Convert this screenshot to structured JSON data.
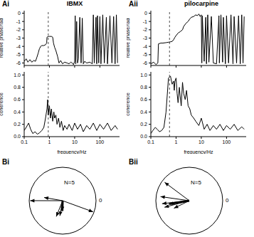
{
  "chart_data": [
    {
      "type": "line",
      "panel_label": "Ai",
      "title": "IBMX",
      "y_label": "relative phase/rad",
      "log": "x",
      "xlim": [
        0.1,
        600
      ],
      "xticks": [
        0.1,
        1,
        10,
        100
      ],
      "ylim": [
        -6.3,
        0.3
      ],
      "yticks": [
        0,
        -1,
        -2,
        -3,
        -4,
        -5,
        -6
      ],
      "tick_labels": "y",
      "reference_x": 0.9,
      "color": "#000000",
      "x": [
        0.1,
        0.12,
        0.14,
        0.17,
        0.2,
        0.24,
        0.28,
        0.32,
        0.36,
        0.4,
        0.45,
        0.5,
        0.6,
        0.7,
        0.78,
        0.8,
        0.9,
        1.0,
        1.2,
        1.35,
        1.45,
        1.6,
        1.8,
        2.1,
        2.4,
        2.8,
        3.3,
        4,
        5,
        6,
        7,
        8,
        9,
        10,
        10.5,
        11,
        12,
        13,
        14,
        16,
        18,
        20,
        22,
        25,
        30,
        40,
        50,
        55,
        60,
        70,
        75,
        80,
        90,
        100,
        110,
        130,
        150,
        180,
        200,
        250,
        300,
        350,
        400,
        450,
        500
      ],
      "values": [
        -5.8,
        -5.5,
        -5.9,
        -5.6,
        -5.9,
        -5.7,
        -5.8,
        -5.3,
        -4.8,
        -4.3,
        -4.0,
        -3.9,
        -3.9,
        -3.8,
        -3.6,
        -2.9,
        -2.8,
        -2.8,
        -2.8,
        -2.9,
        -3.6,
        -4.1,
        -4.5,
        -5.2,
        -6.0,
        -5.7,
        -6.1,
        -5.9,
        -6.0,
        -6.1,
        -5.9,
        -6.0,
        -6.2,
        -5.8,
        -0.3,
        -6.1,
        -1.0,
        -6.0,
        -5.5,
        -0.5,
        -6.0,
        -0.6,
        -6.1,
        -5.8,
        -6.0,
        -5.9,
        -6.1,
        -0.2,
        -6.0,
        -0.5,
        -6.1,
        -0.3,
        -6.0,
        -0.4,
        -6.1,
        -0.2,
        -6.0,
        -0.5,
        -6.1,
        -0.3,
        -6.0,
        -0.4,
        -6.1,
        -0.2,
        -6.0
      ]
    },
    {
      "type": "line",
      "y_label": "coherence",
      "x_label": "frequency/Hz",
      "log": "x",
      "xlim": [
        0.1,
        600
      ],
      "xticks": [
        0.1,
        1,
        10,
        100
      ],
      "ylim": [
        0,
        1.05
      ],
      "yticks": [
        {
          "value": 0,
          "label": "0.0"
        },
        0.2,
        0.4,
        0.6,
        0.8,
        {
          "value": 1,
          "label": "1.0"
        }
      ],
      "tick_labels": true,
      "reference_x": 0.9,
      "color": "#000000",
      "x": [
        0.1,
        0.12,
        0.15,
        0.18,
        0.22,
        0.27,
        0.33,
        0.4,
        0.5,
        0.6,
        0.7,
        0.8,
        0.85,
        0.9,
        1.0,
        1.1,
        1.2,
        1.35,
        1.5,
        1.6,
        1.8,
        2.0,
        2.3,
        2.6,
        3,
        3.5,
        4,
        5,
        6,
        8,
        10,
        13,
        17,
        22,
        30,
        40,
        55,
        75,
        100,
        140,
        200,
        280,
        400,
        500
      ],
      "values": [
        0.1,
        0.15,
        0.22,
        0.12,
        0.05,
        0.08,
        0.04,
        0.06,
        0.1,
        0.15,
        0.3,
        0.45,
        0.6,
        0.35,
        0.5,
        0.3,
        0.45,
        0.25,
        0.4,
        0.3,
        0.35,
        0.2,
        0.3,
        0.15,
        0.25,
        0.1,
        0.18,
        0.12,
        0.2,
        0.1,
        0.22,
        0.12,
        0.2,
        0.08,
        0.18,
        0.12,
        0.22,
        0.1,
        0.2,
        0.12,
        0.22,
        0.1,
        0.18,
        0.12
      ]
    },
    {
      "type": "line",
      "panel_label": "Aii",
      "title": "pilocarpine",
      "y_label": "relative phase/rad",
      "log": "x",
      "xlim": [
        0.1,
        600
      ],
      "xticks": [
        0.1,
        1,
        10,
        100
      ],
      "ylim": [
        -6.3,
        0.3
      ],
      "yticks": [
        0,
        -1,
        -2,
        -3,
        -4,
        -5,
        -6
      ],
      "tick_labels": "y",
      "reference_x": 0.55,
      "color": "#000000",
      "x": [
        0.1,
        0.13,
        0.16,
        0.19,
        0.2,
        0.25,
        0.3,
        0.4,
        0.5,
        0.6,
        0.7,
        0.8,
        0.9,
        1.0,
        1.2,
        1.5,
        1.8,
        2.0,
        2.5,
        3,
        3.5,
        4,
        5,
        6,
        7,
        8,
        9,
        10,
        10.5,
        11,
        13,
        15,
        16,
        18,
        20,
        25,
        30,
        40,
        50,
        52,
        60,
        70,
        75,
        90,
        100,
        120,
        150,
        180,
        200,
        250,
        300,
        350,
        400,
        450,
        500
      ],
      "values": [
        -6.1,
        -5.9,
        -6.2,
        -6.0,
        -3.7,
        -3.6,
        -3.6,
        -3.55,
        -3.5,
        -3.45,
        -3.4,
        -3.2,
        -2.9,
        -2.7,
        -2.4,
        -2.2,
        -2.0,
        -1.6,
        -1.2,
        -1.0,
        -0.7,
        -0.5,
        -0.4,
        -0.2,
        -0.3,
        -0.1,
        -0.4,
        -0.2,
        -6.0,
        -0.3,
        -5.8,
        -0.5,
        -6.1,
        -0.2,
        -5.9,
        -0.4,
        -6.0,
        -6.1,
        -0.3,
        -6.0,
        -0.2,
        -5.9,
        -0.5,
        -6.1,
        -0.3,
        -6.0,
        -0.2,
        -6.1,
        -0.4,
        -6.0,
        -0.3,
        -6.1,
        -0.2,
        -6.0,
        -0.4
      ]
    },
    {
      "type": "line",
      "y_label": "coherence",
      "x_label": "frequency/Hz",
      "log": "x",
      "xlim": [
        0.1,
        600
      ],
      "xticks": [
        0.1,
        1,
        10,
        100
      ],
      "ylim": [
        0,
        1.05
      ],
      "yticks": [
        {
          "value": 0,
          "label": "0.0"
        },
        0.2,
        0.4,
        0.6,
        0.8,
        {
          "value": 1,
          "label": "1.0"
        }
      ],
      "tick_labels": true,
      "reference_x": 0.55,
      "color": "#000000",
      "x": [
        0.1,
        0.12,
        0.15,
        0.18,
        0.22,
        0.27,
        0.33,
        0.4,
        0.5,
        0.6,
        0.7,
        0.8,
        0.85,
        0.9,
        1.0,
        1.1,
        1.2,
        1.35,
        1.5,
        1.6,
        1.8,
        2.0,
        2.3,
        2.6,
        3,
        3.5,
        4,
        5,
        6,
        8,
        10,
        13,
        17,
        22,
        30,
        40,
        55,
        75,
        100,
        140,
        200,
        280,
        400,
        500
      ],
      "values": [
        0.05,
        0.1,
        0.15,
        0.12,
        0.08,
        0.1,
        0.15,
        0.4,
        0.95,
        0.98,
        0.85,
        0.9,
        0.75,
        0.9,
        0.95,
        0.7,
        0.55,
        0.8,
        0.6,
        0.5,
        0.88,
        0.7,
        0.6,
        0.75,
        0.5,
        0.45,
        0.35,
        0.3,
        0.25,
        0.18,
        0.3,
        0.12,
        0.2,
        0.1,
        0.18,
        0.12,
        0.2,
        0.1,
        0.18,
        0.12,
        0.2,
        0.1,
        0.16,
        0.12
      ]
    },
    {
      "type": "polar",
      "panel_label": "Bi",
      "annotation": "N=5",
      "angle_ticks": [
        {
          "value": 0,
          "label": "0"
        }
      ],
      "color": "#000000",
      "vectors": [
        {
          "angle": 3.14,
          "length": 0.95
        },
        {
          "angle": 2.97,
          "length": 0.55
        },
        {
          "angle": -1.95,
          "length": 0.5
        },
        {
          "angle": -1.75,
          "length": 0.45
        },
        {
          "angle": -0.35,
          "length": 0.95
        }
      ],
      "mean": {
        "angle": -1.6,
        "length": 0.3
      }
    },
    {
      "type": "polar",
      "panel_label": "Bii",
      "annotation": "N=5",
      "angle_ticks": [
        {
          "value": 0,
          "label": "0"
        }
      ],
      "color": "#000000",
      "vectors": [
        {
          "angle": 2.5,
          "length": 0.9
        },
        {
          "angle": 3.0,
          "length": 0.85
        },
        {
          "angle": 3.25,
          "length": 0.8
        },
        {
          "angle": 3.4,
          "length": 0.75
        },
        {
          "angle": 3.6,
          "length": 0.5
        }
      ],
      "mean": {
        "angle": 3.3,
        "length": 0.6
      }
    }
  ]
}
